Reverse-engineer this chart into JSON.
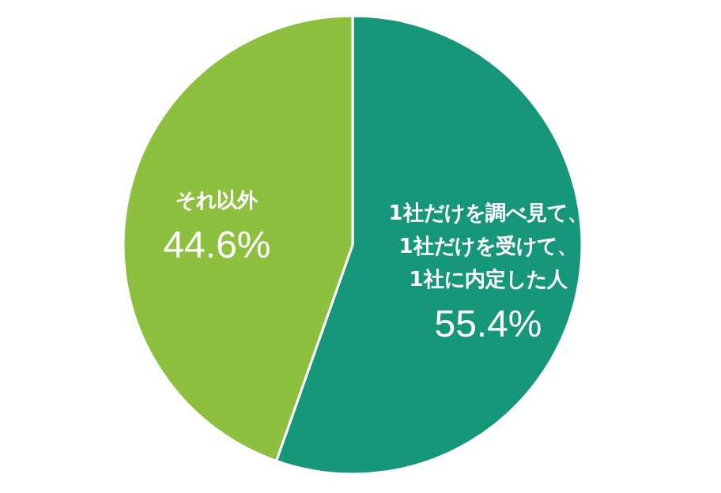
{
  "chart_data": {
    "type": "pie",
    "categories": [
      "1社だけを調べ見て、\n1社だけを受けて、\n1社に内定した人",
      "それ以外"
    ],
    "values": [
      55.4,
      44.6
    ],
    "value_labels": [
      "55.4%",
      "44.6%"
    ],
    "colors": [
      "#17977a",
      "#8dc03f"
    ]
  }
}
